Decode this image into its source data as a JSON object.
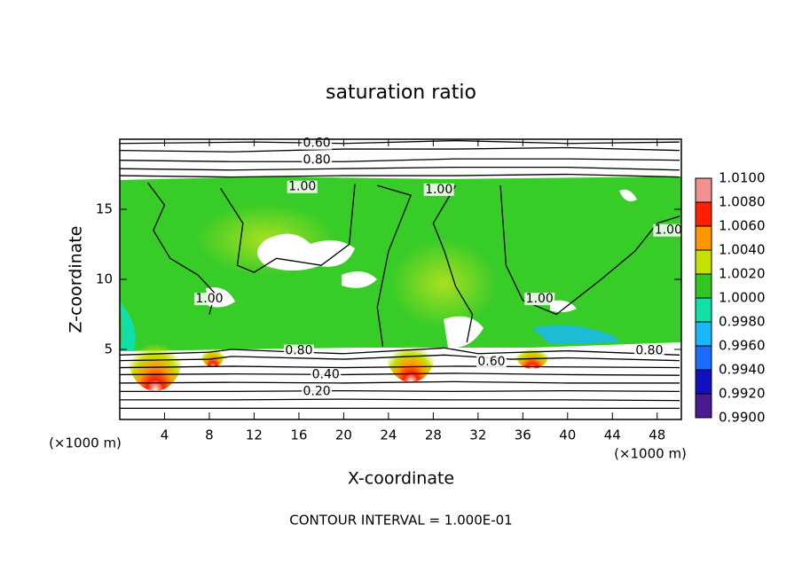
{
  "chart_data": {
    "type": "contour",
    "title": "saturation ratio",
    "xlabel": "X-coordinate",
    "ylabel": "Z-coordinate",
    "x_unit": "(×1000 m)",
    "y_unit": "(×1000 m)",
    "footer": "CONTOUR INTERVAL = 1.000E-01",
    "xlim": [
      0,
      50
    ],
    "ylim": [
      0,
      20
    ],
    "xticks": [
      4,
      8,
      12,
      16,
      20,
      24,
      28,
      32,
      36,
      40,
      44,
      48
    ],
    "yticks": [
      5,
      10,
      15
    ],
    "colorbar": {
      "lim": [
        0.99,
        1.01
      ],
      "ticks": [
        {
          "value": 0.99,
          "label": "0.9900"
        },
        {
          "value": 0.992,
          "label": "0.9920"
        },
        {
          "value": 0.994,
          "label": "0.9940"
        },
        {
          "value": 0.996,
          "label": "0.9960"
        },
        {
          "value": 0.998,
          "label": "0.9980"
        },
        {
          "value": 1.0,
          "label": "1.0000"
        },
        {
          "value": 1.002,
          "label": "1.0020"
        },
        {
          "value": 1.004,
          "label": "1.0040"
        },
        {
          "value": 1.006,
          "label": "1.0060"
        },
        {
          "value": 1.008,
          "label": "1.0080"
        },
        {
          "value": 1.01,
          "label": "1.0100"
        }
      ],
      "colors": [
        "#4a1a90",
        "#1010c0",
        "#1e6cff",
        "#18b8ff",
        "#10e0a8",
        "#30c820",
        "#c8e000",
        "#ff9800",
        "#ff2000",
        "#f49090"
      ]
    },
    "contours": [
      {
        "x": [
          0,
          10,
          20,
          30,
          40,
          50
        ],
        "y": [
          0.8,
          0.8,
          0.8,
          0.8,
          0.8,
          0.8
        ]
      },
      {
        "x": [
          0,
          10,
          20,
          30,
          40,
          50
        ],
        "y": [
          1.4,
          1.4,
          1.45,
          1.4,
          1.4,
          1.35
        ]
      },
      {
        "x": [
          0,
          10,
          20,
          30,
          40,
          50
        ],
        "y": [
          2.0,
          2.0,
          2.05,
          2.0,
          2.05,
          2.0
        ]
      },
      {
        "x": [
          0,
          10,
          20,
          30,
          40,
          50
        ],
        "y": [
          2.6,
          2.65,
          2.6,
          2.7,
          2.6,
          2.6
        ]
      },
      {
        "x": [
          0,
          10,
          20,
          30,
          40,
          50
        ],
        "y": [
          3.2,
          3.25,
          3.2,
          3.3,
          3.2,
          3.15
        ]
      },
      {
        "x": [
          0,
          10,
          20,
          30,
          40,
          50
        ],
        "y": [
          3.7,
          3.8,
          3.7,
          3.8,
          3.75,
          3.7
        ]
      },
      {
        "x": [
          0,
          8,
          10,
          20,
          29,
          35,
          40,
          50
        ],
        "y": [
          4.2,
          4.3,
          4.5,
          4.3,
          4.6,
          4.3,
          4.4,
          4.2
        ]
      },
      {
        "x": [
          0,
          8,
          10,
          16,
          20,
          29,
          32,
          40,
          50
        ],
        "y": [
          4.6,
          4.8,
          5.0,
          4.8,
          4.7,
          5.1,
          4.7,
          4.9,
          4.6
        ]
      },
      {
        "x": [
          0,
          10,
          20,
          30,
          40,
          50
        ],
        "y": [
          17.4,
          17.3,
          17.4,
          17.4,
          17.5,
          17.3
        ]
      },
      {
        "x": [
          0,
          10,
          20,
          30,
          40,
          50
        ],
        "y": [
          17.9,
          17.8,
          17.9,
          18.0,
          18.0,
          17.8
        ]
      },
      {
        "x": [
          0,
          10,
          20,
          30,
          40,
          50
        ],
        "y": [
          18.5,
          18.4,
          18.4,
          18.6,
          18.6,
          18.5
        ]
      },
      {
        "x": [
          0,
          10,
          20,
          30,
          40,
          50
        ],
        "y": [
          19.2,
          19.1,
          19.3,
          19.3,
          19.4,
          19.2
        ]
      },
      {
        "x": [
          0,
          12,
          20,
          30,
          40,
          50
        ],
        "y": [
          19.7,
          19.8,
          19.7,
          19.9,
          19.7,
          19.8
        ]
      },
      {
        "x": [
          2.5,
          4,
          3,
          4.5,
          7,
          8.5,
          8
        ],
        "y": [
          16.9,
          15.3,
          13.5,
          11.5,
          10.3,
          9,
          7.5
        ]
      },
      {
        "x": [
          9,
          11,
          10.5,
          12,
          14,
          18,
          20.5,
          21
        ],
        "y": [
          16.5,
          14,
          11,
          10.5,
          11.5,
          11,
          12.5,
          16.8
        ]
      },
      {
        "x": [
          23,
          26,
          24,
          23,
          23.5
        ],
        "y": [
          16.7,
          16,
          12,
          8,
          5.2
        ]
      },
      {
        "x": [
          30,
          28,
          29,
          30,
          31.5,
          31
        ],
        "y": [
          16.7,
          14,
          12,
          9.5,
          7.5,
          5.5
        ]
      },
      {
        "x": [
          34,
          34.5,
          36,
          39,
          43,
          46,
          48,
          50
        ],
        "y": [
          16.7,
          11,
          8.5,
          7.5,
          10,
          12,
          14,
          14.5
        ]
      }
    ],
    "contour_labels": [
      {
        "label": "0.60",
        "x": 17.6,
        "y": 19.7
      },
      {
        "label": "0.80",
        "x": 17.6,
        "y": 18.5
      },
      {
        "label": "1.00",
        "x": 16.3,
        "y": 16.6
      },
      {
        "label": "1.00",
        "x": 28.5,
        "y": 16.4
      },
      {
        "label": "1.00",
        "x": 49,
        "y": 13.5
      },
      {
        "label": "1.00",
        "x": 8,
        "y": 8.6
      },
      {
        "label": "1.00",
        "x": 37.5,
        "y": 8.6
      },
      {
        "label": "0.80",
        "x": 16,
        "y": 4.9
      },
      {
        "label": "0.60",
        "x": 33.2,
        "y": 4.1
      },
      {
        "label": "0.80",
        "x": 47.3,
        "y": 4.9
      },
      {
        "label": "0.40",
        "x": 18.4,
        "y": 3.2
      },
      {
        "label": "0.20",
        "x": 17.6,
        "y": 2.0
      }
    ]
  }
}
